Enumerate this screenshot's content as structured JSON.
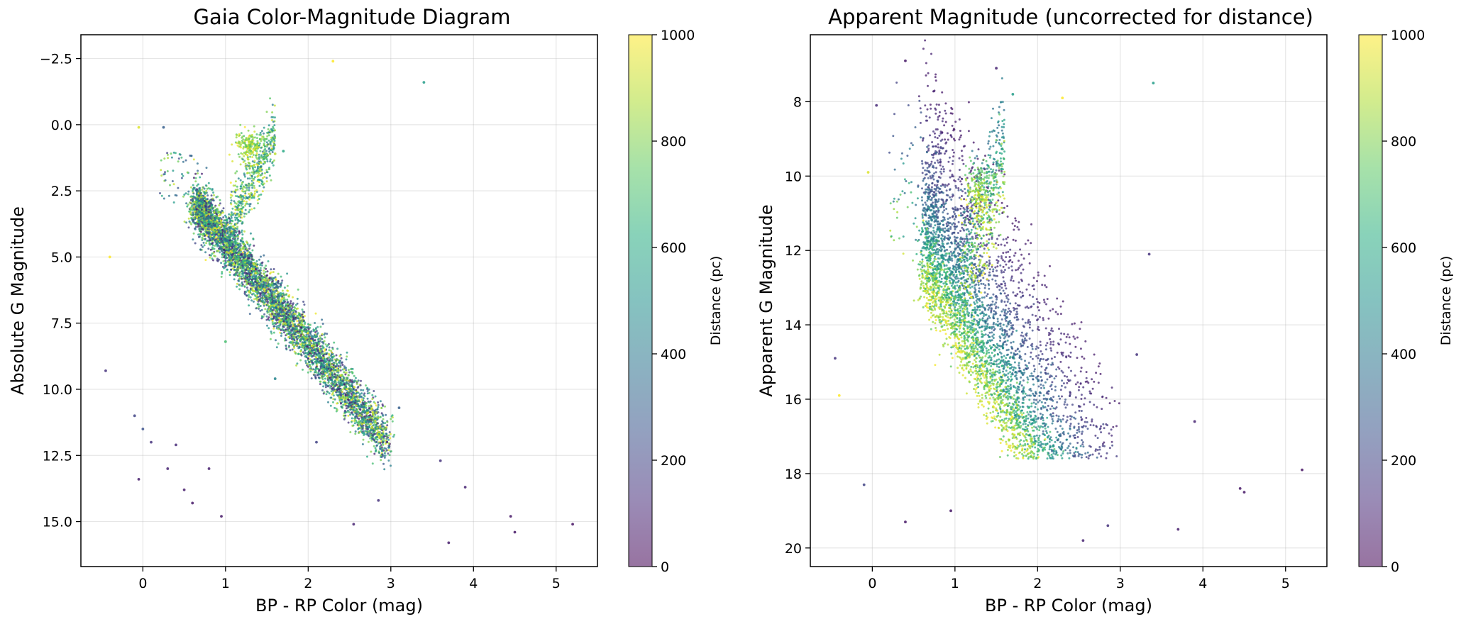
{
  "chart_data": [
    {
      "type": "scatter",
      "title": "Gaia Color-Magnitude Diagram",
      "xlabel": "BP - RP Color (mag)",
      "ylabel": "Absolute G Magnitude",
      "xlim": [
        -0.75,
        5.5
      ],
      "ylim": [
        16.7,
        -3.4
      ],
      "y_inverted": true,
      "grid": true,
      "xticks": [
        "0",
        "1",
        "2",
        "3",
        "4",
        "5"
      ],
      "yticks": [
        "−2.5",
        "0.0",
        "2.5",
        "5.0",
        "7.5",
        "10.0",
        "12.5",
        "15.0"
      ],
      "colorbar": {
        "label": "Distance (pc)",
        "range": [
          0,
          1000
        ],
        "ticks": [
          "0",
          "200",
          "400",
          "600",
          "800",
          "1000"
        ],
        "colormap": "viridis"
      },
      "series": [
        {
          "color_by": "distance_pc",
          "points": [
            {
              "x": 2.3,
              "y": -2.4,
              "distance_pc": 1000
            },
            {
              "x": 3.4,
              "y": -1.6,
              "distance_pc": 550
            },
            {
              "x": 1.7,
              "y": 1.0,
              "distance_pc": 600
            },
            {
              "x": 1.6,
              "y": 1.1,
              "distance_pc": 900
            },
            {
              "x": 0.25,
              "y": 0.1,
              "distance_pc": 300
            },
            {
              "x": -0.4,
              "y": 5.0,
              "distance_pc": 1000
            },
            {
              "x": -0.05,
              "y": 0.1,
              "distance_pc": 950
            },
            {
              "x": -0.45,
              "y": 9.3,
              "distance_pc": 150
            },
            {
              "x": 0.0,
              "y": 11.5,
              "distance_pc": 250
            },
            {
              "x": -0.1,
              "y": 11.0,
              "distance_pc": 200
            },
            {
              "x": 0.1,
              "y": 12.0,
              "distance_pc": 150
            },
            {
              "x": 0.4,
              "y": 12.1,
              "distance_pc": 120
            },
            {
              "x": 0.3,
              "y": 13.0,
              "distance_pc": 100
            },
            {
              "x": 0.5,
              "y": 13.8,
              "distance_pc": 80
            },
            {
              "x": 0.6,
              "y": 14.3,
              "distance_pc": 70
            },
            {
              "x": 0.95,
              "y": 14.8,
              "distance_pc": 60
            },
            {
              "x": 0.8,
              "y": 13.0,
              "distance_pc": 90
            },
            {
              "x": -0.05,
              "y": 13.4,
              "distance_pc": 80
            },
            {
              "x": 2.55,
              "y": 15.1,
              "distance_pc": 100
            },
            {
              "x": 2.85,
              "y": 14.2,
              "distance_pc": 150
            },
            {
              "x": 3.1,
              "y": 10.7,
              "distance_pc": 300
            },
            {
              "x": 3.6,
              "y": 12.7,
              "distance_pc": 150
            },
            {
              "x": 3.9,
              "y": 13.7,
              "distance_pc": 100
            },
            {
              "x": 3.7,
              "y": 15.8,
              "distance_pc": 80
            },
            {
              "x": 4.45,
              "y": 14.8,
              "distance_pc": 60
            },
            {
              "x": 4.5,
              "y": 15.4,
              "distance_pc": 60
            },
            {
              "x": 5.2,
              "y": 15.1,
              "distance_pc": 50
            },
            {
              "x": 2.1,
              "y": 12.0,
              "distance_pc": 200
            },
            {
              "x": 1.6,
              "y": 9.6,
              "distance_pc": 450
            },
            {
              "x": 1.0,
              "y": 8.2,
              "distance_pc": 700
            }
          ]
        }
      ]
    },
    {
      "type": "scatter",
      "title": "Apparent Magnitude (uncorrected for distance)",
      "xlabel": "BP - RP Color (mag)",
      "ylabel": "Apparent G Magnitude",
      "xlim": [
        -0.75,
        5.5
      ],
      "ylim": [
        20.5,
        6.2
      ],
      "y_inverted": true,
      "grid": true,
      "xticks": [
        "0",
        "1",
        "2",
        "3",
        "4",
        "5"
      ],
      "yticks": [
        "8",
        "10",
        "12",
        "14",
        "16",
        "18",
        "20"
      ],
      "colorbar": {
        "label": "Distance (pc)",
        "range": [
          0,
          1000
        ],
        "ticks": [
          "0",
          "200",
          "400",
          "600",
          "800",
          "1000"
        ],
        "colormap": "viridis"
      },
      "series": [
        {
          "color_by": "distance_pc",
          "points": [
            {
              "x": 0.4,
              "y": 6.9,
              "distance_pc": 60
            },
            {
              "x": 1.5,
              "y": 7.1,
              "distance_pc": 100
            },
            {
              "x": 1.7,
              "y": 7.8,
              "distance_pc": 550
            },
            {
              "x": 2.3,
              "y": 7.9,
              "distance_pc": 1000
            },
            {
              "x": 3.4,
              "y": 7.5,
              "distance_pc": 550
            },
            {
              "x": 0.05,
              "y": 8.1,
              "distance_pc": 120
            },
            {
              "x": -0.05,
              "y": 9.9,
              "distance_pc": 950
            },
            {
              "x": -0.4,
              "y": 15.9,
              "distance_pc": 1000
            },
            {
              "x": -0.45,
              "y": 14.9,
              "distance_pc": 150
            },
            {
              "x": 3.35,
              "y": 12.1,
              "distance_pc": 150
            },
            {
              "x": 3.2,
              "y": 14.8,
              "distance_pc": 150
            },
            {
              "x": 3.9,
              "y": 16.6,
              "distance_pc": 100
            },
            {
              "x": 3.7,
              "y": 19.5,
              "distance_pc": 80
            },
            {
              "x": 4.45,
              "y": 18.4,
              "distance_pc": 60
            },
            {
              "x": 4.5,
              "y": 18.5,
              "distance_pc": 60
            },
            {
              "x": 5.2,
              "y": 17.9,
              "distance_pc": 50
            },
            {
              "x": 2.55,
              "y": 19.8,
              "distance_pc": 100
            },
            {
              "x": 2.85,
              "y": 19.4,
              "distance_pc": 150
            },
            {
              "x": 0.4,
              "y": 19.3,
              "distance_pc": 60
            },
            {
              "x": 0.95,
              "y": 19.0,
              "distance_pc": 60
            },
            {
              "x": -0.1,
              "y": 18.3,
              "distance_pc": 200
            }
          ]
        }
      ]
    }
  ]
}
